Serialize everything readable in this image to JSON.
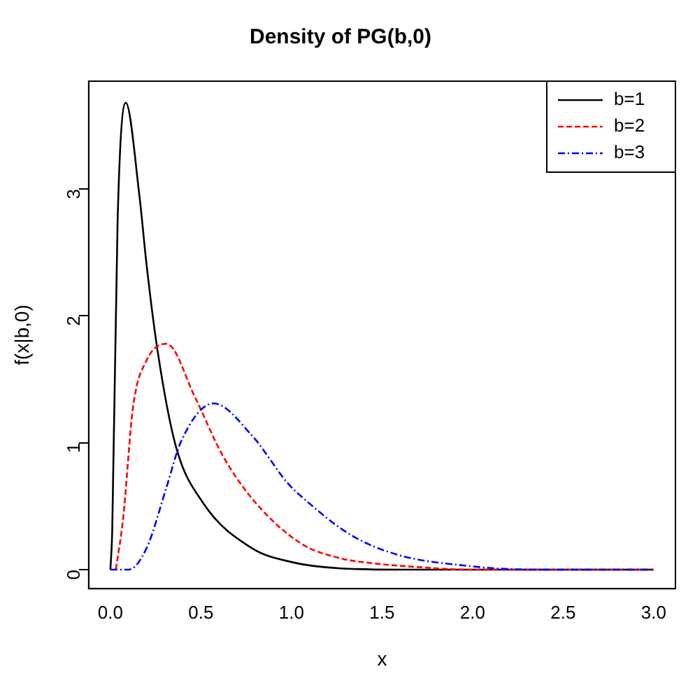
{
  "chart_data": {
    "type": "line",
    "title": "Density of PG(b,0)",
    "xlabel": "x",
    "ylabel": "f(x|b,0)",
    "xlim": [
      -0.12,
      3.12
    ],
    "xticks": [
      {
        "value": 0,
        "label": "0.0"
      },
      {
        "value": 0.5,
        "label": "0.5"
      },
      {
        "value": 1,
        "label": "1.0"
      },
      {
        "value": 1.5,
        "label": "1.5"
      },
      {
        "value": 2,
        "label": "2.0"
      },
      {
        "value": 2.5,
        "label": "2.5"
      },
      {
        "value": 3,
        "label": "3.0"
      }
    ],
    "ylim": [
      -0.15,
      3.85
    ],
    "yticks": [
      0,
      1,
      2,
      3
    ],
    "grid": false,
    "legend": "top right",
    "marker": "none",
    "series": [
      {
        "name": "b=1",
        "color": "#000000",
        "line_style": "solid",
        "x": [
          0,
          0.01,
          0.04,
          0.085,
          0.16,
          0.2,
          0.26,
          0.36,
          0.51,
          0.78,
          1.0,
          1.27,
          1.6,
          2.0,
          2.5,
          3.0
        ],
        "values": [
          0,
          0.3,
          2.76,
          3.68,
          2.95,
          2.4,
          1.73,
          0.98,
          0.53,
          0.17,
          0.06,
          0.01,
          0,
          0,
          0,
          0
        ]
      },
      {
        "name": "b=2",
        "color": "#ff0000",
        "line_style": "dashed",
        "x": [
          0.03,
          0.07,
          0.125,
          0.2,
          0.31,
          0.47,
          0.62,
          0.8,
          1.06,
          1.27,
          1.45,
          1.7,
          1.97,
          2.5,
          3.0
        ],
        "values": [
          0,
          0.4,
          1.28,
          1.65,
          1.78,
          1.35,
          0.9,
          0.53,
          0.2,
          0.09,
          0.05,
          0.02,
          0,
          0,
          0
        ]
      },
      {
        "name": "b=3",
        "color": "#0000ff",
        "line_style": "dotted",
        "x": [
          0,
          0.1,
          0.2,
          0.31,
          0.39,
          0.57,
          0.78,
          0.98,
          1.06,
          1.32,
          1.58,
          1.97,
          2.35,
          3.0
        ],
        "values": [
          0,
          0,
          0.17,
          0.65,
          1.01,
          1.31,
          1.06,
          0.68,
          0.57,
          0.28,
          0.12,
          0.03,
          0,
          0
        ]
      }
    ]
  }
}
